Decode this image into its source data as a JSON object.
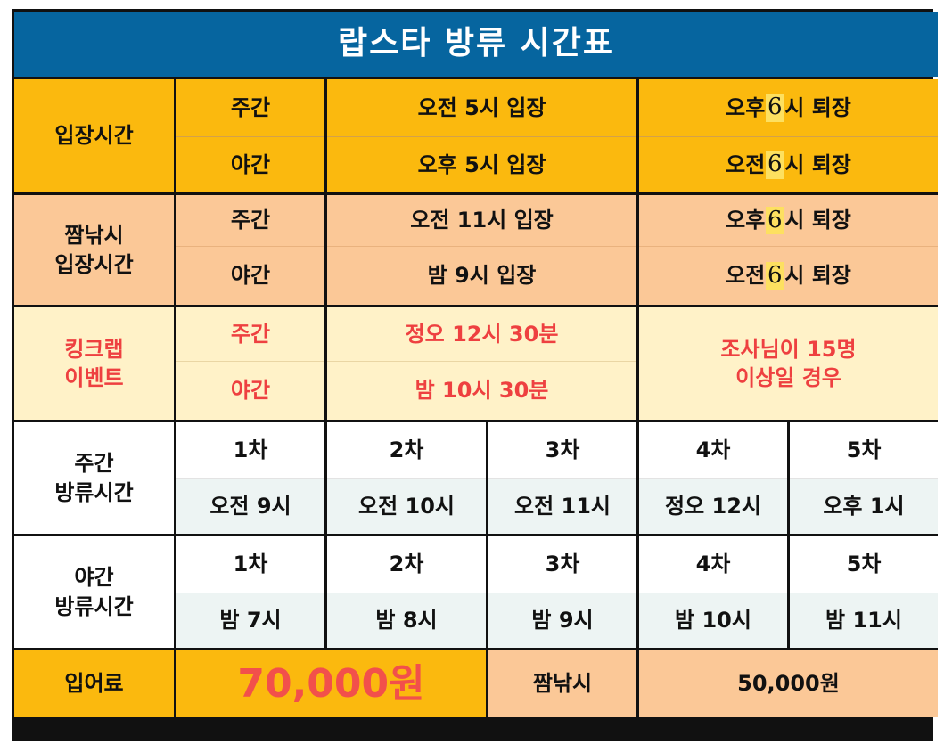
{
  "title": "랍스타 방류 시간표",
  "entry": {
    "label": "입장시간",
    "rows": [
      {
        "type": "주간",
        "in": "오전 5시 입장",
        "out_pre": "오후",
        "out_num": "6",
        "out_post": "시 퇴장"
      },
      {
        "type": "야간",
        "in": "오후 5시 입장",
        "out_pre": "오전",
        "out_num": "6",
        "out_post": "시 퇴장"
      }
    ]
  },
  "short_entry": {
    "label_line1": "짬낚시",
    "label_line2": "입장시간",
    "rows": [
      {
        "type": "주간",
        "in": "오전 11시 입장",
        "out_pre": "오후",
        "out_num": "6",
        "out_post": "시 퇴장"
      },
      {
        "type": "야간",
        "in": "밤 9시 입장",
        "out_pre": "오전",
        "out_num": "6",
        "out_post": "시 퇴장"
      }
    ]
  },
  "king_crab": {
    "label_line1": "킹크랩",
    "label_line2": "이벤트",
    "rows": [
      {
        "type": "주간",
        "time": "정오 12시 30분"
      },
      {
        "type": "야간",
        "time": "밤 10시 30분"
      }
    ],
    "condition_line1": "조사님이 15명",
    "condition_line2": "이상일 경우"
  },
  "day_release": {
    "label_line1": "주간",
    "label_line2": "방류시간",
    "rounds": [
      "1차",
      "2차",
      "3차",
      "4차",
      "5차"
    ],
    "times": [
      "오전 9시",
      "오전 10시",
      "오전 11시",
      "정오 12시",
      "오후 1시"
    ]
  },
  "night_release": {
    "label_line1": "야간",
    "label_line2": "방류시간",
    "rounds": [
      "1차",
      "2차",
      "3차",
      "4차",
      "5차"
    ],
    "times": [
      "밤 7시",
      "밤 8시",
      "밤 9시",
      "밤 10시",
      "밤 11시"
    ]
  },
  "fee": {
    "label": "입어료",
    "price": "70,000원",
    "short_label": "짬낚시",
    "short_price": "50,000원"
  },
  "colors": {
    "title_bg": "#06659f",
    "orange": "#fbb90e",
    "peach": "#fbc897",
    "cream": "#fff2c8",
    "event_red": "#ee4040",
    "price_red": "#f2504b",
    "highlight": "#fde060"
  }
}
